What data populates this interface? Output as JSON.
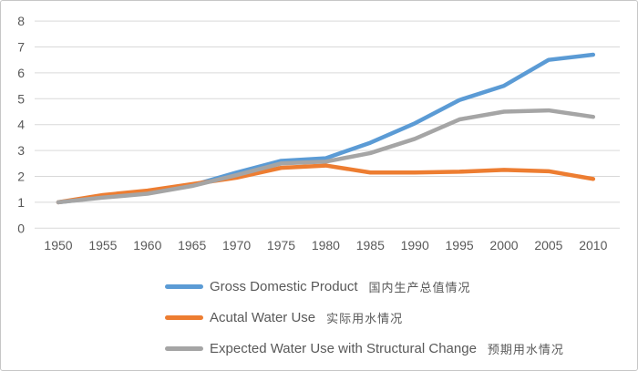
{
  "frame": {
    "background": "#ffffff",
    "border_color": "#c6c6c6"
  },
  "chart_data": {
    "type": "line",
    "title": "",
    "xlabel": "",
    "ylabel": "",
    "x": [
      1950,
      1955,
      1960,
      1965,
      1970,
      1975,
      1980,
      1985,
      1990,
      1995,
      2000,
      2005,
      2010
    ],
    "ylim": [
      0,
      8
    ],
    "y_ticks": [
      0,
      1,
      2,
      3,
      4,
      5,
      6,
      7,
      8
    ],
    "grid": true,
    "gridline_color": "#d9d9d9",
    "axis_text_color": "#595959",
    "legend_position": "bottom-left",
    "series": [
      {
        "name": "Gross Domestic Product",
        "name_zh": "国内生产总值情况",
        "color": "#5B9BD5",
        "values": [
          1.0,
          1.2,
          1.35,
          1.65,
          2.15,
          2.6,
          2.7,
          3.3,
          4.05,
          4.95,
          5.5,
          6.5,
          6.7
        ]
      },
      {
        "name": "Acutal Water Use",
        "name_zh": "实际用水情况",
        "color": "#ED7D31",
        "values": [
          1.0,
          1.28,
          1.45,
          1.7,
          1.95,
          2.33,
          2.42,
          2.15,
          2.15,
          2.18,
          2.25,
          2.2,
          1.9
        ]
      },
      {
        "name": "Expected Water Use with Structural Change",
        "name_zh": "预期用水情况",
        "color": "#A5A5A5",
        "values": [
          1.0,
          1.18,
          1.33,
          1.63,
          2.05,
          2.5,
          2.57,
          2.9,
          3.45,
          4.2,
          4.5,
          4.55,
          4.3
        ]
      }
    ]
  }
}
